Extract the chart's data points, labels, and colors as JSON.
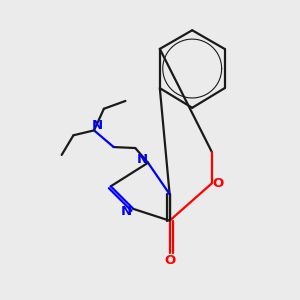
{
  "background_color": "#ebebeb",
  "bond_color": "#1a1a1a",
  "nitrogen_color": "#0000ff",
  "oxygen_color": "#ff0000",
  "line_width": 1.6,
  "fig_width": 3.0,
  "fig_height": 3.0,
  "xlim": [
    0,
    10
  ],
  "ylim": [
    0,
    10
  ]
}
